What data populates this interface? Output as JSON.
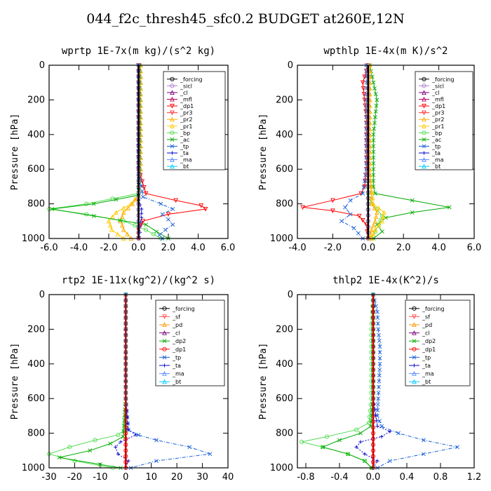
{
  "title": "044_f2c_thresh45_sfc0.2  BUDGET at260E,12N",
  "chart_data": [
    {
      "type": "line",
      "title": "wprtp   1E-7x(m kg)/(s^2 kg)",
      "ylabel": "Pressure [hPa]",
      "xlim": [
        -6,
        6
      ],
      "ylim": [
        1000,
        0
      ],
      "xticks": [
        "-6.0",
        "-4.0",
        "-2.0",
        "0.0",
        "2.0",
        "4.0",
        "6.0"
      ],
      "yticks": [
        "0",
        "200",
        "400",
        "600",
        "800",
        "1000"
      ],
      "legend": [
        "_forcing",
        "_sicl",
        "_cl",
        "_mfl",
        "_dp1",
        "_pr3",
        "_pr2",
        "_pr1",
        "_bp",
        "_ac",
        "_tp",
        "_ta",
        "_ma",
        "_bt"
      ],
      "series": [
        {
          "name": "_forcing",
          "color": "#000000",
          "marker": "o",
          "y": [
            0,
            100,
            200,
            300,
            400,
            500,
            600,
            700,
            800,
            900,
            1000
          ],
          "x": [
            0,
            0,
            0,
            0,
            0,
            0,
            0,
            0,
            0,
            0,
            0
          ]
        },
        {
          "name": "_pr1",
          "color": "#ffcc00",
          "marker": "^",
          "y": [
            0,
            600,
            750,
            800,
            850,
            900,
            950,
            1000
          ],
          "x": [
            0.1,
            0.1,
            0,
            -0.5,
            -1.5,
            -2.0,
            -1.8,
            -1.0
          ]
        },
        {
          "name": "_pr2",
          "color": "#ffb000",
          "marker": "^",
          "y": [
            0,
            600,
            750,
            800,
            850,
            900,
            950,
            1000
          ],
          "x": [
            0.15,
            0.15,
            0,
            -0.4,
            -1.0,
            -1.2,
            -1.0,
            -0.5
          ]
        },
        {
          "name": "_bp",
          "color": "#55dd55",
          "marker": "o",
          "y": [
            0,
            600,
            740,
            800,
            830,
            860,
            900,
            950,
            1000
          ],
          "x": [
            0.05,
            0.05,
            0.0,
            -3.5,
            -6.0,
            -3.5,
            -1.0,
            0.5,
            1.5
          ]
        },
        {
          "name": "_ac",
          "color": "#00aa00",
          "marker": "x",
          "y": [
            0,
            600,
            750,
            800,
            830,
            870,
            920,
            960,
            1000
          ],
          "x": [
            0.05,
            0.05,
            0,
            -3.0,
            -5.8,
            -3.0,
            0.5,
            1.2,
            2.0
          ]
        },
        {
          "name": "_dp1",
          "color": "#ff0000",
          "marker": "v",
          "y": [
            0,
            600,
            740,
            780,
            810,
            830,
            860,
            900,
            950,
            1000
          ],
          "x": [
            0,
            0,
            0.5,
            2.5,
            4.2,
            4.5,
            2.0,
            0.3,
            0,
            0
          ]
        },
        {
          "name": "_tp",
          "color": "#1a5fd6",
          "marker": "x",
          "y": [
            0,
            600,
            760,
            800,
            830,
            860,
            890,
            920,
            950,
            980,
            1000
          ],
          "x": [
            0,
            0,
            0.3,
            1.5,
            2.3,
            1.6,
            2.0,
            2.3,
            1.8,
            1.4,
            1.6
          ]
        },
        {
          "name": "_ta",
          "color": "#0000cc",
          "marker": "+",
          "y": [
            0,
            780,
            830,
            880,
            930,
            1000
          ],
          "x": [
            0,
            0,
            0.2,
            0.2,
            0.1,
            0.1
          ]
        },
        {
          "name": "_sicl",
          "color": "#b07fd0",
          "marker": "o",
          "y": [
            0,
            100,
            200,
            300,
            400,
            500,
            600,
            700,
            800,
            900,
            1000
          ],
          "x": [
            0,
            0,
            0,
            0,
            0,
            0,
            0,
            0,
            0,
            0,
            0
          ]
        }
      ]
    },
    {
      "type": "line",
      "title": "wpthlp   1E-4x(m K)/s^2",
      "ylabel": "Pressure [hPa]",
      "xlim": [
        -4,
        6
      ],
      "ylim": [
        1000,
        0
      ],
      "xticks": [
        "-4.0",
        "-2.0",
        "0.0",
        "2.0",
        "4.0",
        "6.0"
      ],
      "yticks": [
        "0",
        "200",
        "400",
        "600",
        "800",
        "1000"
      ],
      "legend": [
        "_forcing",
        "_sicl",
        "_cl",
        "_mfl",
        "_dp1",
        "_pr3",
        "_pr2",
        "_pr1",
        "_bp",
        "_ac",
        "_tp",
        "_ta",
        "_ma",
        "_bt"
      ],
      "series": [
        {
          "name": "_forcing",
          "color": "#000000",
          "marker": "o",
          "y": [
            0,
            200,
            400,
            600,
            800,
            1000
          ],
          "x": [
            0,
            0,
            0,
            0,
            0,
            0
          ]
        },
        {
          "name": "_ac",
          "color": "#00aa00",
          "marker": "x",
          "y": [
            0,
            100,
            200,
            300,
            400,
            500,
            600,
            700,
            740,
            780,
            820,
            850,
            880,
            920,
            960,
            1000
          ],
          "x": [
            0.1,
            0.3,
            0.5,
            0.4,
            0.3,
            0.3,
            0.3,
            0.3,
            0.4,
            2.5,
            4.6,
            2.5,
            1.0,
            0.5,
            0.8,
            0.3
          ]
        },
        {
          "name": "_bp",
          "color": "#55dd55",
          "marker": "o",
          "y": [
            0,
            600,
            740,
            800,
            830,
            870,
            920,
            1000
          ],
          "x": [
            0,
            0,
            0,
            0.2,
            0.5,
            0.8,
            0.6,
            0.2
          ]
        },
        {
          "name": "_dp1",
          "color": "#ff0000",
          "marker": "v",
          "y": [
            0,
            100,
            200,
            300,
            400,
            500,
            600,
            700,
            740,
            780,
            820,
            840,
            870,
            920,
            1000
          ],
          "x": [
            0,
            -0.3,
            -0.2,
            -0.1,
            -0.1,
            -0.1,
            -0.1,
            -0.2,
            -0.4,
            -2.0,
            -3.7,
            -2.0,
            -0.5,
            -0.1,
            0
          ]
        },
        {
          "name": "_tp",
          "color": "#1a5fd6",
          "marker": "x",
          "y": [
            0,
            600,
            740,
            780,
            820,
            860,
            900,
            940,
            1000
          ],
          "x": [
            -0.1,
            -0.1,
            -0.3,
            -1.0,
            -1.3,
            -1.0,
            -1.5,
            -0.8,
            -0.3
          ]
        },
        {
          "name": "_pr1",
          "color": "#ffcc00",
          "marker": "^",
          "y": [
            0,
            200,
            400,
            600,
            800,
            850,
            900,
            950,
            1000
          ],
          "x": [
            0.05,
            0.05,
            0.05,
            0.05,
            0.3,
            0.9,
            0.8,
            0.4,
            0.2
          ]
        },
        {
          "name": "_pr2",
          "color": "#ffb000",
          "marker": "^",
          "y": [
            0,
            200,
            400,
            600,
            800,
            850,
            900,
            950,
            1000
          ],
          "x": [
            0.1,
            0.1,
            0.1,
            0.1,
            0.2,
            0.5,
            0.4,
            0.2,
            0.1
          ]
        },
        {
          "name": "_sicl",
          "color": "#b07fd0",
          "marker": "o",
          "y": [
            0,
            200,
            400,
            600,
            800,
            1000
          ],
          "x": [
            0,
            0,
            0,
            0,
            0,
            0
          ]
        }
      ]
    },
    {
      "type": "line",
      "title": "rtp2   1E-11x(kg^2)/(kg^2 s)",
      "ylabel": "Pressure [hPa]",
      "xlim": [
        -30,
        40
      ],
      "ylim": [
        1000,
        0
      ],
      "xticks": [
        "-30",
        "-20",
        "-10",
        "0",
        "10",
        "20",
        "30",
        "40"
      ],
      "yticks": [
        "0",
        "200",
        "400",
        "600",
        "800",
        "1000"
      ],
      "legend": [
        "_forcing",
        "_sf",
        "_pd",
        "_cl",
        "_dp2",
        "_dp1",
        "_tp",
        "_ta",
        "_ma",
        "_bt"
      ],
      "series": [
        {
          "name": "_forcing",
          "color": "#ff0000",
          "marker": "o",
          "y": [
            0,
            100,
            200,
            300,
            400,
            500,
            600,
            700,
            800,
            900,
            1000
          ],
          "x": [
            0,
            0,
            0,
            0,
            0,
            0,
            0,
            0,
            0,
            0,
            0
          ]
        },
        {
          "name": "_dp1",
          "color": "#55dd55",
          "marker": "o",
          "y": [
            0,
            600,
            780,
            810,
            840,
            880,
            920,
            960,
            1000
          ],
          "x": [
            0,
            0,
            -0.5,
            -3,
            -12,
            -22,
            -30,
            -20,
            -5
          ]
        },
        {
          "name": "_dp2",
          "color": "#00aa00",
          "marker": "x",
          "y": [
            0,
            600,
            820,
            860,
            900,
            940,
            980,
            1000
          ],
          "x": [
            0,
            0,
            -1,
            -6,
            -14,
            -26,
            -10,
            -2
          ]
        },
        {
          "name": "_tp",
          "color": "#1a5fd6",
          "marker": "x",
          "y": [
            0,
            600,
            780,
            810,
            840,
            880,
            920,
            960,
            1000
          ],
          "x": [
            0,
            0,
            1,
            5,
            12,
            25,
            33,
            12,
            2
          ]
        },
        {
          "name": "_ta",
          "color": "#0000cc",
          "marker": "+",
          "y": [
            0,
            600,
            780,
            810,
            850,
            880,
            920,
            960,
            1000
          ],
          "x": [
            0,
            0,
            1,
            4,
            -2,
            -4,
            -3,
            1,
            0
          ]
        }
      ]
    },
    {
      "type": "line",
      "title": "thlp2   1E-4x(K^2)/s",
      "ylabel": "Pressure [hPa]",
      "xlim": [
        -0.9,
        1.2
      ],
      "ylim": [
        1000,
        0
      ],
      "xticks": [
        "-0.8",
        "-0.4",
        "0.0",
        "0.4",
        "0.8",
        "1.2"
      ],
      "yticks": [
        "0",
        "200",
        "400",
        "600",
        "800",
        "1000"
      ],
      "legend": [
        "_forcing",
        "_sf",
        "_pd",
        "_cl",
        "_dp2",
        "_dp1",
        "_tp",
        "_ta",
        "_ma",
        "_bt"
      ],
      "series": [
        {
          "name": "_forcing",
          "color": "#ff0000",
          "marker": "o",
          "y": [
            0,
            100,
            200,
            300,
            400,
            500,
            600,
            700,
            800,
            900,
            1000
          ],
          "x": [
            0,
            0,
            0,
            0,
            0,
            0,
            0,
            0,
            0,
            0,
            0
          ]
        },
        {
          "name": "_dp1",
          "color": "#55dd55",
          "marker": "o",
          "y": [
            0,
            200,
            400,
            600,
            740,
            780,
            820,
            850,
            880,
            920,
            960,
            1000
          ],
          "x": [
            0,
            -0.02,
            -0.02,
            -0.02,
            -0.05,
            -0.2,
            -0.55,
            -0.85,
            -0.6,
            -0.3,
            -0.1,
            -0.02
          ]
        },
        {
          "name": "_dp2",
          "color": "#00aa00",
          "marker": "x",
          "y": [
            0,
            600,
            760,
            800,
            840,
            880,
            920,
            960,
            1000
          ],
          "x": [
            0,
            0,
            -0.03,
            -0.15,
            -0.4,
            -0.6,
            -0.3,
            -0.1,
            -0.02
          ]
        },
        {
          "name": "_tp",
          "color": "#1a5fd6",
          "marker": "x",
          "y": [
            0,
            100,
            200,
            300,
            400,
            500,
            600,
            700,
            760,
            800,
            840,
            880,
            920,
            960,
            1000
          ],
          "x": [
            0,
            0.05,
            0.06,
            0.08,
            0.08,
            0.07,
            0.06,
            0.05,
            0.1,
            0.3,
            0.6,
            1.0,
            0.6,
            0.2,
            0.05
          ]
        },
        {
          "name": "_ta",
          "color": "#0000cc",
          "marker": "+",
          "y": [
            0,
            600,
            760,
            790,
            820,
            850,
            880,
            920,
            960,
            1000
          ],
          "x": [
            0,
            0,
            0.05,
            0.2,
            0.1,
            -0.15,
            -0.2,
            -0.1,
            0.05,
            0
          ]
        }
      ]
    }
  ]
}
